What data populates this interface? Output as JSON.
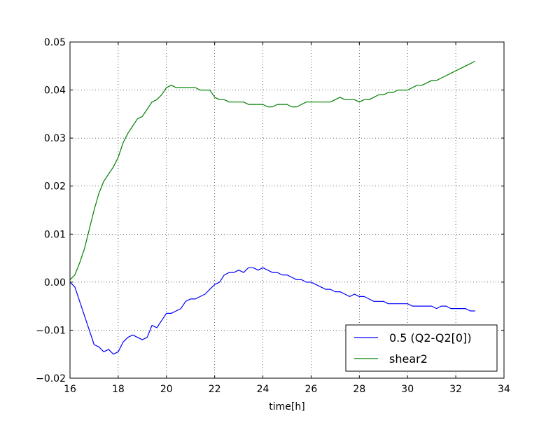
{
  "chart_data": {
    "type": "line",
    "title": "",
    "xlabel": "time[h]",
    "ylabel": "",
    "xlim": [
      16,
      34
    ],
    "ylim": [
      -0.02,
      0.05
    ],
    "xticks": [
      16,
      18,
      20,
      22,
      24,
      26,
      28,
      30,
      32,
      34
    ],
    "yticks": [
      -0.02,
      -0.01,
      0.0,
      0.01,
      0.02,
      0.03,
      0.04,
      0.05
    ],
    "x_tick_labels": [
      "16",
      "18",
      "20",
      "22",
      "24",
      "26",
      "28",
      "30",
      "32",
      "34"
    ],
    "y_tick_labels": [
      "−0.02",
      "−0.01",
      "0.00",
      "0.01",
      "0.02",
      "0.03",
      "0.04",
      "0.05"
    ],
    "grid": true,
    "legend_position": "bottom-right",
    "series": [
      {
        "name": "0.5 (Q2-Q2[0])",
        "color": "#0000ff",
        "x": [
          16.0,
          16.2,
          16.4,
          16.6,
          16.8,
          17.0,
          17.2,
          17.4,
          17.6,
          17.8,
          18.0,
          18.2,
          18.4,
          18.6,
          18.8,
          19.0,
          19.2,
          19.4,
          19.6,
          19.8,
          20.0,
          20.2,
          20.4,
          20.6,
          20.8,
          21.0,
          21.2,
          21.4,
          21.6,
          21.8,
          22.0,
          22.2,
          22.4,
          22.6,
          22.8,
          23.0,
          23.2,
          23.4,
          23.6,
          23.8,
          24.0,
          24.2,
          24.4,
          24.6,
          24.8,
          25.0,
          25.2,
          25.4,
          25.6,
          25.8,
          26.0,
          26.2,
          26.4,
          26.6,
          26.8,
          27.0,
          27.2,
          27.4,
          27.6,
          27.8,
          28.0,
          28.2,
          28.4,
          28.6,
          28.8,
          29.0,
          29.2,
          29.4,
          29.6,
          29.8,
          30.0,
          30.2,
          30.4,
          30.6,
          30.8,
          31.0,
          31.2,
          31.4,
          31.6,
          31.8,
          32.0,
          32.2,
          32.4,
          32.6,
          32.8
        ],
        "y": [
          0.0,
          -0.001,
          -0.004,
          -0.007,
          -0.01,
          -0.013,
          -0.0135,
          -0.0145,
          -0.014,
          -0.015,
          -0.0145,
          -0.0125,
          -0.0115,
          -0.011,
          -0.0115,
          -0.012,
          -0.0115,
          -0.009,
          -0.0095,
          -0.008,
          -0.0065,
          -0.0065,
          -0.006,
          -0.0055,
          -0.004,
          -0.0035,
          -0.0035,
          -0.003,
          -0.0025,
          -0.0015,
          -0.0005,
          0.0,
          0.0015,
          0.002,
          0.002,
          0.0025,
          0.002,
          0.003,
          0.003,
          0.0025,
          0.003,
          0.0025,
          0.002,
          0.002,
          0.0015,
          0.0015,
          0.001,
          0.0005,
          0.0005,
          0.0,
          0.0,
          -0.0005,
          -0.001,
          -0.0015,
          -0.0015,
          -0.002,
          -0.002,
          -0.0025,
          -0.003,
          -0.0025,
          -0.003,
          -0.003,
          -0.0035,
          -0.004,
          -0.004,
          -0.004,
          -0.0045,
          -0.0045,
          -0.0045,
          -0.0045,
          -0.0045,
          -0.005,
          -0.005,
          -0.005,
          -0.005,
          -0.005,
          -0.0055,
          -0.005,
          -0.005,
          -0.0055,
          -0.0055,
          -0.0055,
          -0.0055,
          -0.006,
          -0.006
        ]
      },
      {
        "name": "shear2",
        "color": "#008000",
        "x": [
          16.0,
          16.2,
          16.4,
          16.6,
          16.8,
          17.0,
          17.2,
          17.4,
          17.6,
          17.8,
          18.0,
          18.2,
          18.4,
          18.6,
          18.8,
          19.0,
          19.2,
          19.4,
          19.6,
          19.8,
          20.0,
          20.2,
          20.4,
          20.6,
          20.8,
          21.0,
          21.2,
          21.4,
          21.6,
          21.8,
          22.0,
          22.2,
          22.4,
          22.6,
          22.8,
          23.0,
          23.2,
          23.4,
          23.6,
          23.8,
          24.0,
          24.2,
          24.4,
          24.6,
          24.8,
          25.0,
          25.2,
          25.4,
          25.6,
          25.8,
          26.0,
          26.2,
          26.4,
          26.6,
          26.8,
          27.0,
          27.2,
          27.4,
          27.6,
          27.8,
          28.0,
          28.2,
          28.4,
          28.6,
          28.8,
          29.0,
          29.2,
          29.4,
          29.6,
          29.8,
          30.0,
          30.2,
          30.4,
          30.6,
          30.8,
          31.0,
          31.2,
          31.4,
          31.6,
          31.8,
          32.0,
          32.2,
          32.4,
          32.6,
          32.8
        ],
        "y": [
          0.0005,
          0.0015,
          0.004,
          0.007,
          0.011,
          0.015,
          0.0185,
          0.021,
          0.0225,
          0.024,
          0.026,
          0.029,
          0.031,
          0.0325,
          0.034,
          0.0345,
          0.036,
          0.0375,
          0.038,
          0.039,
          0.0405,
          0.041,
          0.0405,
          0.0405,
          0.0405,
          0.0405,
          0.0405,
          0.04,
          0.04,
          0.04,
          0.0385,
          0.038,
          0.038,
          0.0375,
          0.0375,
          0.0375,
          0.0375,
          0.037,
          0.037,
          0.037,
          0.037,
          0.0365,
          0.0365,
          0.037,
          0.037,
          0.037,
          0.0365,
          0.0365,
          0.037,
          0.0375,
          0.0375,
          0.0375,
          0.0375,
          0.0375,
          0.0375,
          0.038,
          0.0385,
          0.038,
          0.038,
          0.038,
          0.0375,
          0.038,
          0.038,
          0.0385,
          0.039,
          0.039,
          0.0395,
          0.0395,
          0.04,
          0.04,
          0.04,
          0.0405,
          0.041,
          0.041,
          0.0415,
          0.042,
          0.042,
          0.0425,
          0.043,
          0.0435,
          0.044,
          0.0445,
          0.045,
          0.0455,
          0.046
        ]
      }
    ]
  }
}
